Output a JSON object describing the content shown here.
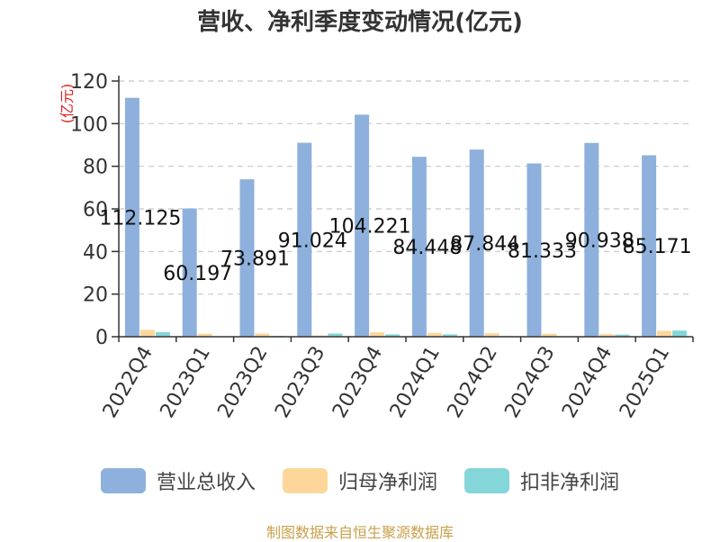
{
  "chart_data": {
    "type": "bar",
    "title": "营收、净利季度变动情况(亿元)",
    "ylabel": "(亿元)",
    "xlabel": "",
    "ylim": [
      0,
      120
    ],
    "yticks": [
      0,
      20,
      40,
      60,
      80,
      100,
      120
    ],
    "grid": true,
    "legend_position": "bottom",
    "categories": [
      "2022Q4",
      "2023Q1",
      "2023Q2",
      "2023Q3",
      "2023Q4",
      "2024Q1",
      "2024Q2",
      "2024Q3",
      "2024Q4",
      "2025Q1"
    ],
    "series": [
      {
        "name": "营业总收入",
        "color": "#8eb0dc",
        "values": [
          112.125,
          60.197,
          73.891,
          91.024,
          104.221,
          84.448,
          87.844,
          81.333,
          90.938,
          85.171
        ],
        "data_labels": [
          "112.125",
          "60.197",
          "73.891",
          "91.024",
          "104.221",
          "84.448",
          "87.844",
          "81.333",
          "90.938",
          "85.171"
        ]
      },
      {
        "name": "归母净利润",
        "color": "#fdd79a",
        "values": [
          3.2,
          1.4,
          1.5,
          0.6,
          2.1,
          1.8,
          1.6,
          1.4,
          1.2,
          2.8
        ]
      },
      {
        "name": "扣非净利润",
        "color": "#84d6d8",
        "values": [
          2.2,
          0.2,
          0.4,
          1.5,
          1.1,
          1.1,
          0.3,
          0.1,
          1.0,
          2.9
        ]
      }
    ]
  },
  "source": {
    "text": "制图数据来自恒生聚源数据库",
    "color": "#c8a04a"
  }
}
